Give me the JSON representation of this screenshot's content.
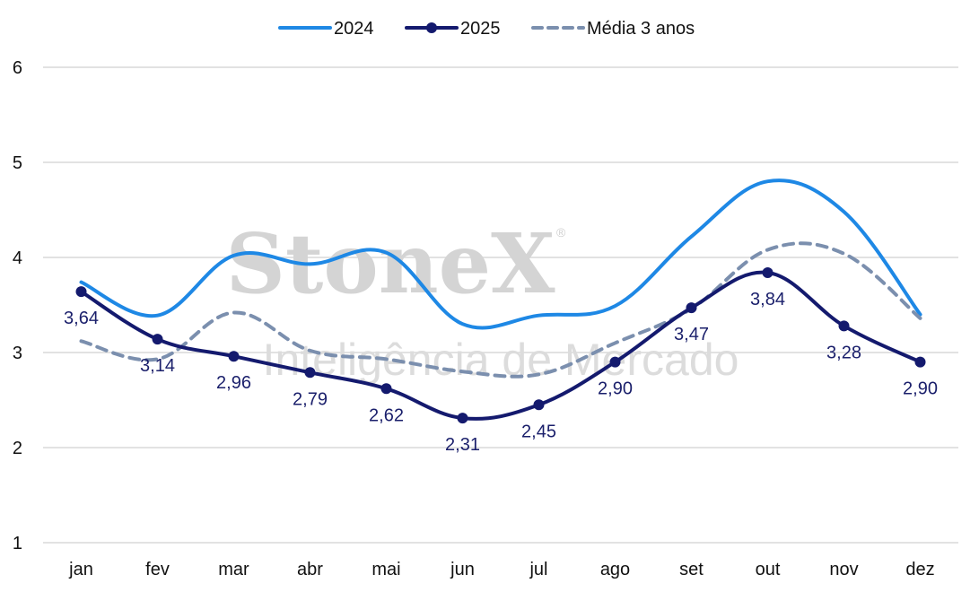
{
  "watermark": {
    "brand": "StoneX",
    "registered": "®",
    "tagline": "Inteligência de Mercado"
  },
  "chart_data": {
    "type": "line",
    "categories": [
      "jan",
      "fev",
      "mar",
      "abr",
      "mai",
      "jun",
      "jul",
      "ago",
      "set",
      "out",
      "nov",
      "dez"
    ],
    "ylim": [
      1,
      6
    ],
    "yticks": [
      "1",
      "2",
      "3",
      "4",
      "5",
      "6"
    ],
    "grid": true,
    "legend": "top-center",
    "series": [
      {
        "name": "2024",
        "values": [
          3.74,
          3.39,
          4.02,
          3.93,
          4.05,
          3.3,
          3.39,
          3.49,
          4.22,
          4.8,
          4.48,
          3.4
        ],
        "color": "#1e88e5",
        "style": "solid",
        "markers": false
      },
      {
        "name": "2025",
        "values": [
          3.64,
          3.14,
          2.96,
          2.79,
          2.62,
          2.31,
          2.45,
          2.9,
          3.47,
          3.84,
          3.28,
          2.9
        ],
        "labels": [
          "3,64",
          "3,14",
          "2,96",
          "2,79",
          "2,62",
          "2,31",
          "2,45",
          "2,90",
          "3,47",
          "3,84",
          "3,28",
          "2,90"
        ],
        "color": "#141a6e",
        "style": "solid",
        "markers": true
      },
      {
        "name": "Média 3 anos",
        "values": [
          3.12,
          2.93,
          3.42,
          3.02,
          2.93,
          2.8,
          2.77,
          3.1,
          3.46,
          4.08,
          4.04,
          3.36
        ],
        "color": "#7b8fae",
        "style": "dashed",
        "markers": false
      }
    ]
  }
}
